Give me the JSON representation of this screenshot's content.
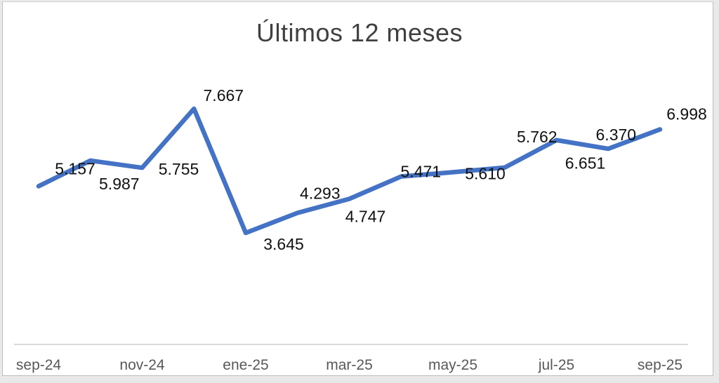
{
  "chart_data": {
    "type": "line",
    "title": "Últimos 12 meses",
    "x_tick_labels": [
      "sep-24",
      "nov-24",
      "ene-25",
      "mar-25",
      "may-25",
      "jul-25",
      "sep-25"
    ],
    "x_tick_indices": [
      0,
      2,
      4,
      6,
      8,
      10,
      12
    ],
    "series": [
      {
        "name": "Últimos 12 meses",
        "points": [
          {
            "label": "5.157",
            "value": 5157
          },
          {
            "label": "5.987",
            "value": 5987
          },
          {
            "label": "5.755",
            "value": 5755
          },
          {
            "label": "7.667",
            "value": 7667
          },
          {
            "label": "3.645",
            "value": 3645
          },
          {
            "label": "4.293",
            "value": 4293
          },
          {
            "label": "4.747",
            "value": 4747
          },
          {
            "label": "5.471",
            "value": 5471
          },
          {
            "label": "5.610",
            "value": 5610
          },
          {
            "label": "5.762",
            "value": 5762
          },
          {
            "label": "6.651",
            "value": 6651
          },
          {
            "label": "6.370",
            "value": 6370
          },
          {
            "label": "6.998",
            "value": 6998
          }
        ]
      }
    ],
    "y_axis_visible": false,
    "gridlines": false,
    "legend": "none",
    "data_labels_shown": true,
    "colors": {
      "line": "#4472C4",
      "data_labels": "#111111",
      "axis_line": "#D9D9D9",
      "tick_labels": "#595959",
      "title": "#404040",
      "background": "#FFFFFF"
    }
  }
}
